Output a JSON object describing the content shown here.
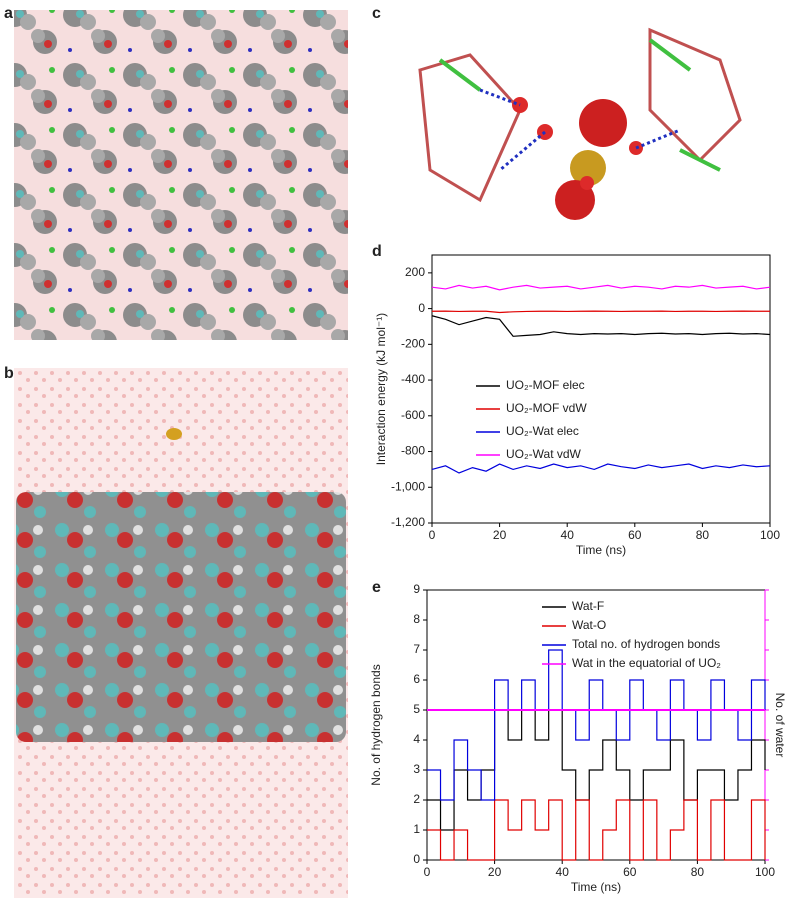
{
  "panels": [
    "a",
    "b",
    "c"
  ],
  "chart_data": [
    {
      "type": "line",
      "panel": "d",
      "xlabel": "Time (ns)",
      "ylabel": "Interaction energy (kJ mol⁻¹)",
      "x": [
        0,
        4,
        8,
        12,
        16,
        20,
        24,
        28,
        32,
        36,
        40,
        44,
        48,
        52,
        56,
        60,
        64,
        68,
        72,
        76,
        80,
        84,
        88,
        92,
        96,
        100
      ],
      "xlim": [
        0,
        100
      ],
      "xticks": [
        0,
        20,
        40,
        60,
        80,
        100
      ],
      "ylim": [
        -1200,
        300
      ],
      "yticks": [
        {
          "value": -1200,
          "label": "-1,200"
        },
        {
          "value": -1000,
          "label": "-1,000"
        },
        -800,
        -600,
        -400,
        -200,
        0,
        200
      ],
      "legend": "lower right",
      "series": [
        {
          "name": "UO₂-MOF elec",
          "color": "#000000",
          "values": [
            -40,
            -60,
            -90,
            -70,
            -50,
            -60,
            -155,
            -150,
            -145,
            -130,
            -140,
            -145,
            -140,
            -142,
            -140,
            -145,
            -140,
            -138,
            -142,
            -140,
            -145,
            -140,
            -138,
            -142,
            -140,
            -145
          ]
        },
        {
          "name": "UO₂-MOF vdW",
          "color": "#e00000",
          "values": [
            -15,
            -14,
            -16,
            -15,
            -15,
            -22,
            -18,
            -16,
            -15,
            -15,
            -16,
            -15,
            -14,
            -15,
            -16,
            -15,
            -15,
            -14,
            -16,
            -15,
            -15,
            -16,
            -15,
            -14,
            -15,
            -15
          ]
        },
        {
          "name": "UO₂-Wat elec",
          "color": "#0000dd",
          "values": [
            -900,
            -880,
            -920,
            -890,
            -910,
            -870,
            -900,
            -880,
            -895,
            -870,
            -890,
            -880,
            -900,
            -870,
            -885,
            -895,
            -875,
            -890,
            -880,
            -870,
            -895,
            -880,
            -890,
            -875,
            -885,
            -880
          ]
        },
        {
          "name": "UO₂-Wat vdW",
          "color": "#ff00ff",
          "values": [
            120,
            110,
            130,
            115,
            125,
            105,
            120,
            130,
            115,
            120,
            125,
            110,
            120,
            130,
            115,
            125,
            120,
            110,
            125,
            120,
            130,
            115,
            120,
            125,
            110,
            120
          ]
        }
      ]
    },
    {
      "type": "line",
      "panel": "e",
      "drawstyle": "steps",
      "xlabel": "Time (ns)",
      "ylabel": "No. of hydrogen bonds",
      "y2label": "No. of water",
      "y2color": "#ff00ff",
      "x": [
        0,
        4,
        8,
        12,
        16,
        20,
        24,
        28,
        32,
        36,
        40,
        44,
        48,
        52,
        56,
        60,
        64,
        68,
        72,
        76,
        80,
        84,
        88,
        92,
        96,
        100
      ],
      "xlim": [
        0,
        100
      ],
      "xticks": [
        0,
        20,
        40,
        60,
        80,
        100
      ],
      "ylim": [
        0,
        9
      ],
      "yticks": [
        0,
        1,
        2,
        3,
        4,
        5,
        6,
        7,
        8,
        9
      ],
      "y2lim": [
        0,
        9
      ],
      "y2ticks": [
        0,
        1,
        2,
        3,
        4,
        5,
        6,
        7,
        8,
        9
      ],
      "legend": "upper left",
      "series": [
        {
          "name": "Wat-F",
          "color": "#000000",
          "values": [
            2,
            1,
            3,
            2,
            3,
            5,
            4,
            5,
            4,
            5,
            3,
            2,
            3,
            4,
            3,
            2,
            3,
            3,
            4,
            2,
            3,
            3,
            2,
            3,
            4,
            3
          ]
        },
        {
          "name": "Wat-O",
          "color": "#e00000",
          "values": [
            1,
            0,
            1,
            0,
            0,
            2,
            1,
            2,
            1,
            2,
            0,
            2,
            0,
            1,
            2,
            0,
            2,
            0,
            1,
            2,
            0,
            2,
            0,
            0,
            2,
            0
          ]
        },
        {
          "name": "Total no. of hydrogen bonds",
          "color": "#0000dd",
          "values": [
            3,
            2,
            4,
            3,
            2,
            6,
            5,
            6,
            5,
            7,
            5,
            4,
            6,
            5,
            4,
            6,
            5,
            4,
            6,
            5,
            4,
            6,
            5,
            4,
            6,
            5
          ]
        },
        {
          "name": "Wat in the equatorial of UO₂",
          "color": "#ff00ff",
          "axis": "y2",
          "values": [
            5,
            5,
            5,
            5,
            5,
            5,
            5,
            5,
            5,
            5,
            5,
            5,
            5,
            5,
            5,
            5,
            5,
            5,
            5,
            5,
            5,
            5,
            5,
            5,
            5,
            5
          ]
        }
      ]
    }
  ]
}
